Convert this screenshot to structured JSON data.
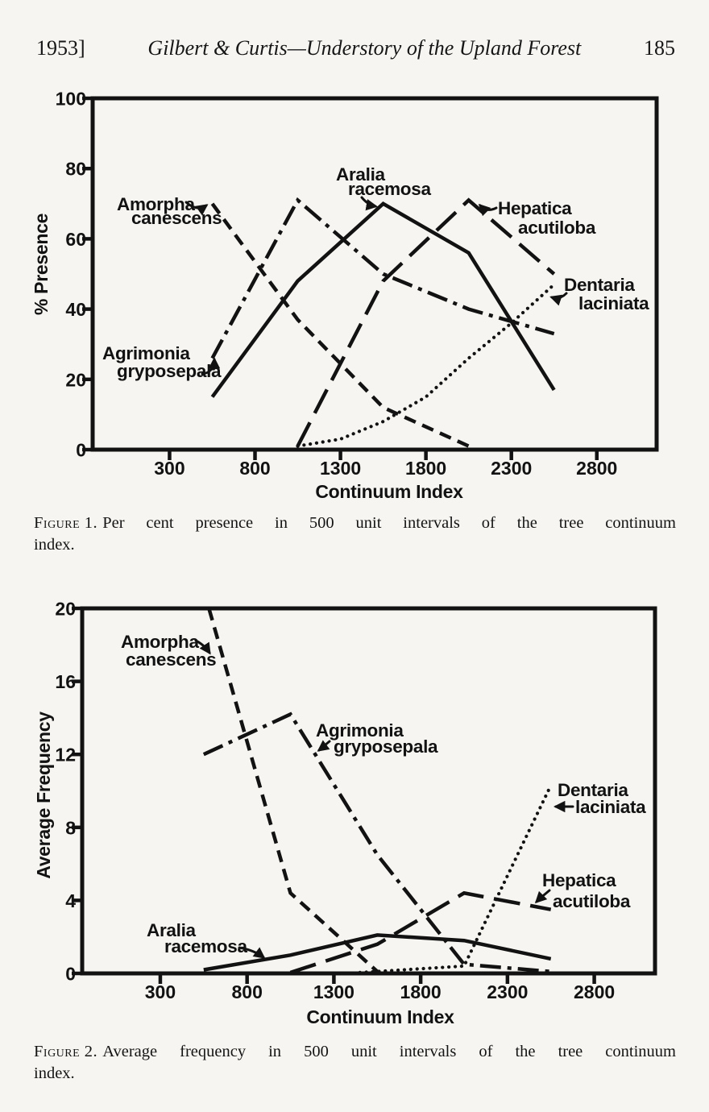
{
  "page": {
    "paper_color": "#f6f5f1",
    "ink_color": "#121212"
  },
  "header": {
    "year": "1953]",
    "title": "Gilbert & Curtis—Understory of the Upland Forest",
    "page_number": "185"
  },
  "captions": {
    "figure1": {
      "label": "Figure 1.",
      "line1": "Per cent presence in 500 unit intervals of the tree continuum",
      "line2": "index."
    },
    "figure2": {
      "label": "Figure 2.",
      "line1": "Average frequency in 500 unit intervals of the tree continuum",
      "line2": "index."
    }
  },
  "chart_data": [
    {
      "id": "figure1",
      "type": "line",
      "title": "",
      "caption": "Figure 1. Per cent presence in 500 unit intervals of the tree continuum index.",
      "xlabel": "Continuum Index",
      "ylabel": "% Presence",
      "xlim": [
        -150,
        3150
      ],
      "ylim": [
        0,
        100
      ],
      "xticks": [
        300,
        800,
        1300,
        1800,
        2300,
        2800
      ],
      "yticks": [
        0,
        20,
        40,
        60,
        80,
        100
      ],
      "grid": false,
      "legend_position": "inline-labels",
      "series": [
        {
          "name": "Amorpha canescens",
          "label_lines": [
            "Amorpha",
            "canescens"
          ],
          "line_style": "dashed",
          "x": [
            550,
            1050,
            1550,
            2050
          ],
          "y": [
            70,
            37,
            12,
            1
          ]
        },
        {
          "name": "Agrimonia gryposepala",
          "label_lines": [
            "Agrimonia",
            "gryposepala"
          ],
          "line_style": "dashdot",
          "x": [
            550,
            1050,
            1550,
            2050,
            2550
          ],
          "y": [
            26,
            71,
            50,
            40,
            33
          ]
        },
        {
          "name": "Aralia racemosa",
          "label_lines": [
            "Aralia",
            "racemosa"
          ],
          "line_style": "solid",
          "x": [
            550,
            1050,
            1550,
            2050,
            2550
          ],
          "y": [
            15,
            48,
            70,
            56,
            17
          ]
        },
        {
          "name": "Hepatica acutiloba",
          "label_lines": [
            "Hepatica",
            "acutiloba"
          ],
          "line_style": "longdash",
          "x": [
            1050,
            1550,
            2050,
            2550
          ],
          "y": [
            1,
            48,
            71,
            50
          ]
        },
        {
          "name": "Dentaria laciniata",
          "label_lines": [
            "Dentaria",
            "laciniata"
          ],
          "line_style": "dotted",
          "x": [
            1050,
            1300,
            1550,
            1800,
            2050,
            2300,
            2550
          ],
          "y": [
            1,
            3,
            8,
            15,
            26,
            36,
            47
          ]
        }
      ]
    },
    {
      "id": "figure2",
      "type": "line",
      "title": "",
      "caption": "Figure 2. Average frequency in 500 unit intervals of the tree continuum index.",
      "xlabel": "Continuum Index",
      "ylabel": "Average Frequency",
      "xlim": [
        -150,
        3150
      ],
      "ylim": [
        0,
        20
      ],
      "xticks": [
        300,
        800,
        1300,
        1800,
        2300,
        2800
      ],
      "yticks": [
        0,
        4,
        8,
        12,
        16,
        20
      ],
      "grid": false,
      "legend_position": "inline-labels",
      "series": [
        {
          "name": "Amorpha canescens",
          "label_lines": [
            "Amorpha",
            "canescens"
          ],
          "line_style": "dashed",
          "clipped_at_top": true,
          "x": [
            550,
            1050,
            1550
          ],
          "y": [
            21,
            4.4,
            0.1
          ]
        },
        {
          "name": "Agrimonia gryposepala",
          "label_lines": [
            "Agrimonia",
            "gryposepala"
          ],
          "line_style": "dashdot",
          "x": [
            550,
            1050,
            1550,
            2050,
            2550
          ],
          "y": [
            12,
            14.2,
            6.5,
            0.5,
            0.1
          ]
        },
        {
          "name": "Aralia racemosa",
          "label_lines": [
            "Aralia",
            "racemosa"
          ],
          "line_style": "solid",
          "x": [
            550,
            1050,
            1550,
            2050,
            2550
          ],
          "y": [
            0.2,
            1.0,
            2.1,
            1.8,
            0.8
          ]
        },
        {
          "name": "Hepatica acutiloba",
          "label_lines": [
            "Hepatica",
            "acutiloba"
          ],
          "line_style": "longdash",
          "x": [
            1050,
            1550,
            2050,
            2550
          ],
          "y": [
            0.05,
            1.6,
            4.4,
            3.5
          ]
        },
        {
          "name": "Dentaria laciniata",
          "label_lines": [
            "Dentaria",
            "laciniata"
          ],
          "line_style": "dotted",
          "x": [
            1450,
            2050,
            2550
          ],
          "y": [
            0.05,
            0.4,
            10.3
          ]
        }
      ]
    }
  ]
}
